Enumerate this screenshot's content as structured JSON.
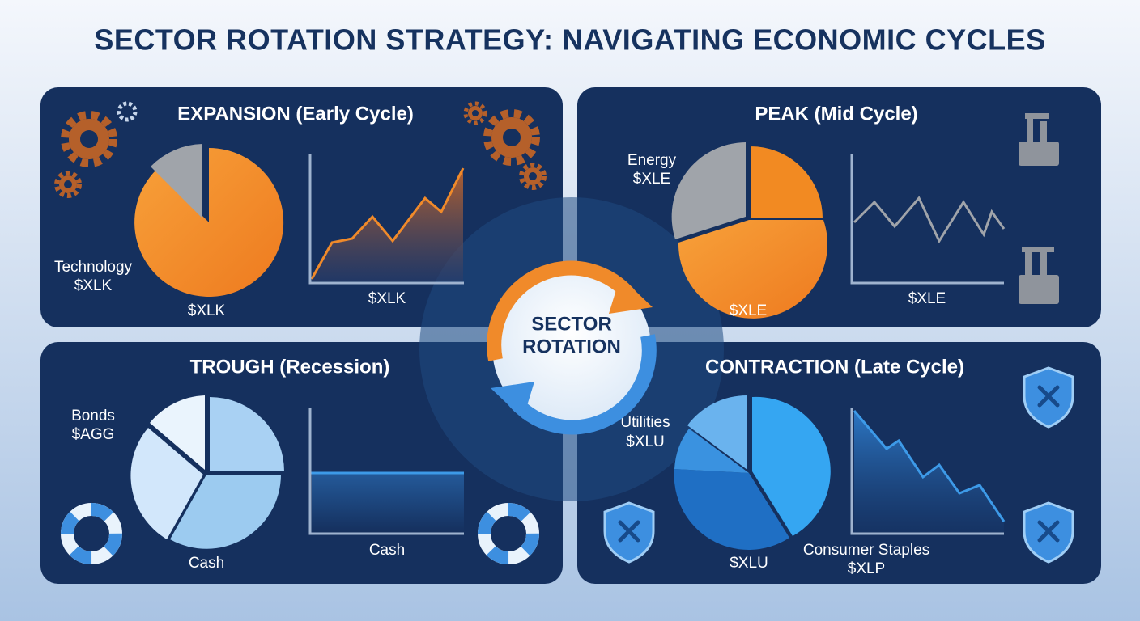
{
  "title": "SECTOR ROTATION STRATEGY: NAVIGATING ECONOMIC CYCLES",
  "center": [
    "SECTOR",
    "ROTATION"
  ],
  "panels": [
    {
      "title": "EXPANSION (Early Cycle)",
      "side_label": [
        "Technology",
        "$XLK"
      ],
      "pie_caption": "$XLK",
      "line_caption": "$XLK"
    },
    {
      "title": "PEAK (Mid Cycle)",
      "side_label": [
        "Energy",
        "$XLE"
      ],
      "pie_caption": "$XLE",
      "line_caption": "$XLE"
    },
    {
      "title": "TROUGH (Recession)",
      "side_label": [
        "Bonds",
        "$AGG"
      ],
      "pie_caption": "Cash",
      "line_caption": "Cash"
    },
    {
      "title": "CONTRACTION (Late Cycle)",
      "side_label": [
        "Utilities",
        "$XLU"
      ],
      "pie_caption": "$XLU",
      "line_caption": [
        "Consumer Staples",
        "$XLP"
      ]
    }
  ]
}
